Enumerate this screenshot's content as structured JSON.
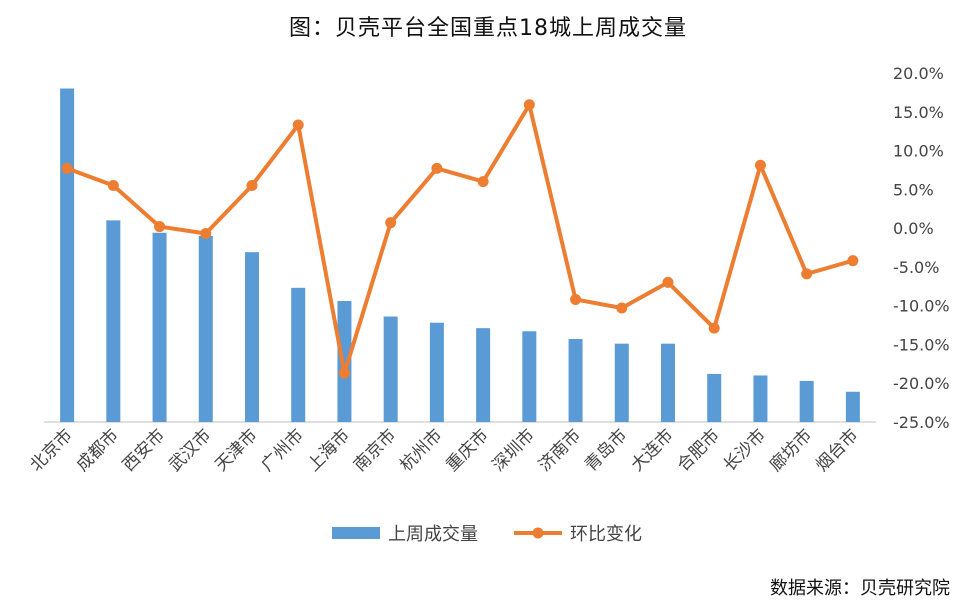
{
  "chart_data": {
    "type": "bar+line",
    "title": "图：贝壳平台全国重点18城上周成交量",
    "source": "数据来源：贝壳研究院",
    "categories": [
      "北京市",
      "成都市",
      "西安市",
      "武汉市",
      "天津市",
      "广州市",
      "上海市",
      "南京市",
      "杭州市",
      "重庆市",
      "深圳市",
      "济南市",
      "青岛市",
      "大连市",
      "合肥市",
      "长沙市",
      "廊坊市",
      "烟台市"
    ],
    "series": [
      {
        "name": "上周成交量",
        "type": "bar",
        "axis": "left",
        "color": "#5B9BD5",
        "values": [
          430,
          260,
          244,
          240,
          219,
          173,
          156,
          136,
          128,
          121,
          117,
          107,
          101,
          101,
          62,
          60,
          53,
          39
        ]
      },
      {
        "name": "环比变化",
        "type": "line",
        "axis": "right",
        "color": "#ED7D31",
        "values": [
          7.7,
          5.5,
          0.2,
          -0.7,
          5.5,
          13.3,
          -18.7,
          0.7,
          7.7,
          6.0,
          15.9,
          -9.2,
          -10.3,
          -7.0,
          -12.9,
          8.1,
          -5.9,
          -4.2
        ]
      }
    ],
    "y_right": {
      "min": -25,
      "max": 20,
      "step": 5,
      "tick_labels": [
        "20.0%",
        "15.0%",
        "10.0%",
        "5.0%",
        "0.0%",
        "-5.0%",
        "-10.0%",
        "-15.0%",
        "-20.0%",
        "-25.0%"
      ]
    },
    "y_left": {
      "min": 0,
      "max": 450,
      "visible": false
    },
    "legend": {
      "position": "bottom",
      "items": [
        "上周成交量",
        "环比变化"
      ]
    },
    "grid": false
  }
}
